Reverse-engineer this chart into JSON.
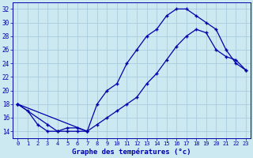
{
  "title": "Graphe des températures (°c)",
  "background_color": "#cce8f0",
  "grid_color": "#aaccdd",
  "line_color": "#0000aa",
  "x_labels": [
    "0",
    "1",
    "2",
    "3",
    "4",
    "5",
    "6",
    "7",
    "8",
    "9",
    "10",
    "11",
    "12",
    "13",
    "14",
    "15",
    "16",
    "17",
    "18",
    "19",
    "20",
    "21",
    "22",
    "23"
  ],
  "yticks": [
    14,
    16,
    18,
    20,
    22,
    24,
    26,
    28,
    30,
    32
  ],
  "ylim": [
    13.0,
    33.0
  ],
  "xlim": [
    -0.5,
    23.5
  ],
  "figsize": [
    3.2,
    2.0
  ],
  "dpi": 100,
  "curve1_h": [
    0,
    1,
    2,
    3,
    4,
    5,
    6,
    7
  ],
  "curve1_v": [
    18,
    17,
    15,
    14,
    14,
    14.5,
    14.5,
    14
  ],
  "curve2_h": [
    0,
    7,
    8,
    9,
    10,
    11,
    12,
    13,
    14,
    15,
    16,
    17,
    18,
    19,
    20,
    21,
    22,
    23
  ],
  "curve2_v": [
    18,
    14,
    18,
    20,
    21,
    24,
    26,
    28,
    29,
    31,
    32,
    32,
    31,
    30,
    29,
    26,
    24,
    23
  ],
  "curve3_h": [
    0,
    3,
    4,
    5,
    6,
    7,
    8,
    9,
    10,
    11,
    12,
    13,
    14,
    15,
    16,
    17,
    18,
    19,
    20,
    21,
    22,
    23
  ],
  "curve3_v": [
    18,
    15,
    14,
    14,
    14,
    14,
    15,
    16,
    17,
    18,
    19,
    21,
    22.5,
    24.5,
    26.5,
    28,
    29,
    28.5,
    26,
    25,
    24.5,
    23
  ]
}
